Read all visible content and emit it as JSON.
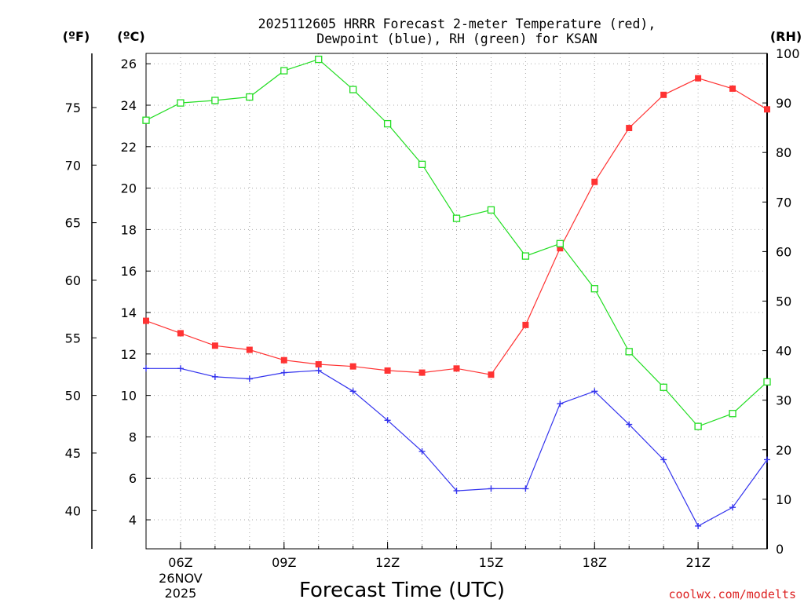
{
  "chart_data": {
    "type": "line",
    "title_lines": [
      "2025112605 HRRR Forecast 2-meter Temperature (red),",
      "Dewpoint (blue), RH (green) for KSAN"
    ],
    "xlabel": "Forecast Time (UTC)",
    "watermark": "coolwx.com/modelts",
    "x_hours": [
      5,
      6,
      7,
      8,
      9,
      10,
      11,
      12,
      13,
      14,
      15,
      16,
      17,
      18,
      19,
      20,
      21,
      22,
      23
    ],
    "xlim": [
      5,
      23
    ],
    "x_ticks": [
      {
        "hour": 6,
        "label": "06Z"
      },
      {
        "hour": 9,
        "label": "09Z"
      },
      {
        "hour": 12,
        "label": "12Z"
      },
      {
        "hour": 15,
        "label": "15Z"
      },
      {
        "hour": 18,
        "label": "18Z"
      },
      {
        "hour": 21,
        "label": "21Z"
      }
    ],
    "date_label": [
      "26NOV",
      "2025"
    ],
    "axes": {
      "celsius": {
        "label": "(ºC)",
        "lim": [
          2.6,
          26.5
        ],
        "ticks": [
          4,
          6,
          8,
          10,
          12,
          14,
          16,
          18,
          20,
          22,
          24,
          26
        ]
      },
      "fahrenheit": {
        "label": "(ºF)",
        "ticks": [
          40,
          45,
          50,
          55,
          60,
          65,
          70,
          75
        ]
      },
      "rh": {
        "label": "(RH)",
        "lim": [
          0,
          100
        ],
        "ticks": [
          0,
          10,
          20,
          30,
          40,
          50,
          60,
          70,
          80,
          90,
          100
        ]
      }
    },
    "series": [
      {
        "name": "Temperature",
        "axis": "celsius",
        "color": "#ff3333",
        "marker": "filled-square",
        "values": [
          13.6,
          13.0,
          12.4,
          12.2,
          11.7,
          11.5,
          11.4,
          11.2,
          11.1,
          11.3,
          11.0,
          13.4,
          17.1,
          20.3,
          22.9,
          24.5,
          25.3,
          24.8,
          23.8
        ]
      },
      {
        "name": "Dewpoint",
        "axis": "celsius",
        "color": "#3333ee",
        "marker": "plus",
        "values": [
          11.3,
          11.3,
          10.9,
          10.8,
          11.1,
          11.2,
          10.2,
          8.8,
          7.3,
          5.4,
          5.5,
          5.5,
          9.6,
          10.2,
          8.6,
          6.9,
          3.7,
          4.6,
          6.9
        ]
      },
      {
        "name": "RH",
        "axis": "rh",
        "color": "#22dd22",
        "marker": "open-square",
        "values": [
          86.5,
          90,
          90.5,
          91.2,
          96.5,
          98.8,
          92.7,
          85.8,
          77.6,
          66.7,
          68.4,
          59.1,
          61.6,
          52.5,
          39.8,
          32.6,
          24.7,
          27.3,
          33.7
        ]
      }
    ]
  }
}
